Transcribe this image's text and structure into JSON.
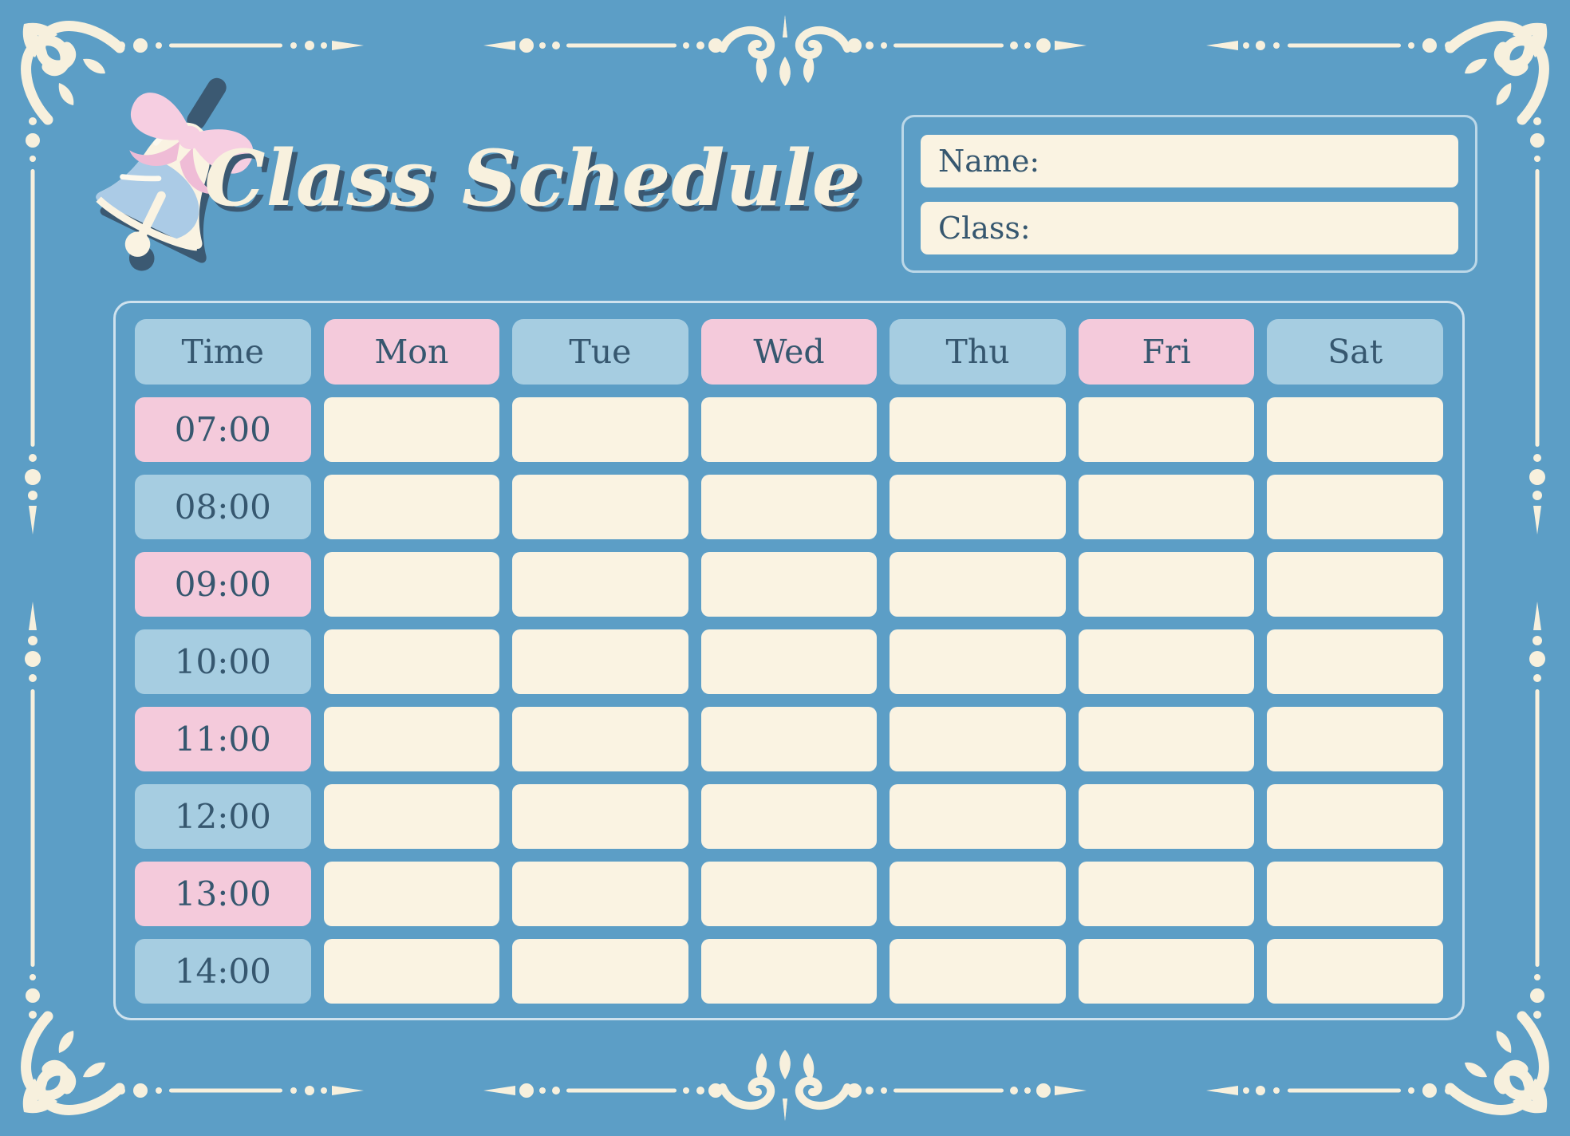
{
  "header": {
    "title": "Class Schedule"
  },
  "info_box": {
    "name_label": "Name:",
    "class_label": "Class:",
    "name_value": "",
    "class_value": ""
  },
  "schedule": {
    "columns": [
      "Time",
      "Mon",
      "Tue",
      "Wed",
      "Thu",
      "Fri",
      "Sat"
    ],
    "times": [
      "07:00",
      "08:00",
      "09:00",
      "10:00",
      "11:00",
      "12:00",
      "13:00",
      "14:00"
    ],
    "cells_empty": true
  },
  "colors": {
    "background": "#5C9EC6",
    "cream": "#FAF3E2",
    "pink": "#F4CADB",
    "light_blue": "#A6CDE1",
    "text_dark": "#36576F",
    "ornament": "#F7F0DD",
    "title_cream": "#F8F1DE",
    "title_shadow": "#3B5972",
    "panel_border": "#BCD8E8",
    "panel_border2": "#CFE2EE",
    "bow_pink": "#F6CEE1",
    "bow_pink_dark": "#EFBCD6",
    "bell_face_blue": "#ABCBE6",
    "bell_dark": "#3B5972"
  }
}
